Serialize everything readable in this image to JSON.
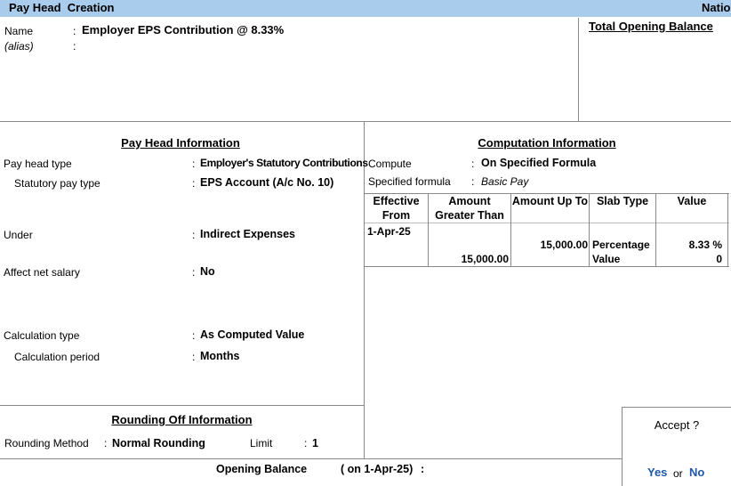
{
  "header": {
    "title": "Pay Head  Creation",
    "company": "Natio"
  },
  "separator": ":",
  "name": {
    "label": "Name",
    "value": "Employer EPS Contribution @ 8.33%"
  },
  "alias": {
    "label": "(alias)"
  },
  "total_opening_balance": "Total Opening Balance",
  "pay_head_information": {
    "title": "Pay Head Information",
    "fields": [
      {
        "label": "Pay head type",
        "value": "Employer's Statutory Contributions"
      },
      {
        "label": "Statutory pay type",
        "value": "EPS Account (A/c No. 10)"
      },
      {
        "label": "Under",
        "value": "Indirect Expenses"
      },
      {
        "label": "Affect net salary",
        "value": "No"
      },
      {
        "label": "Calculation type",
        "value": "As Computed Value"
      },
      {
        "label": "Calculation period",
        "value": "Months"
      }
    ]
  },
  "computation_information": {
    "title": "Computation Information",
    "fields": [
      {
        "label": "Compute",
        "value": "On Specified Formula"
      },
      {
        "label": "Specified formula",
        "value": "Basic Pay"
      }
    ],
    "slab_table": {
      "headers": [
        "Effective From",
        "Amount Greater Than",
        "Amount Up To",
        "Slab Type",
        "Value"
      ],
      "rows": [
        {
          "effective_from": "1-Apr-25",
          "amount_up_to": "15,000.00",
          "slab_type": "Percentage",
          "value": "8.33 %"
        },
        {
          "amount_greater_than": "15,000.00",
          "slab_type": "Value",
          "value": "0"
        }
      ]
    }
  },
  "rounding_off_information": {
    "title": "Rounding Off Information",
    "method_label": "Rounding Method",
    "method": "Normal Rounding",
    "limit_label": "Limit",
    "limit": "1"
  },
  "footer": {
    "label": "Opening Balance",
    "date": "( on 1-Apr-25)"
  },
  "accept_dialog": {
    "prompt": "Accept ?",
    "yes": "Yes",
    "or": "or",
    "no": "No"
  }
}
